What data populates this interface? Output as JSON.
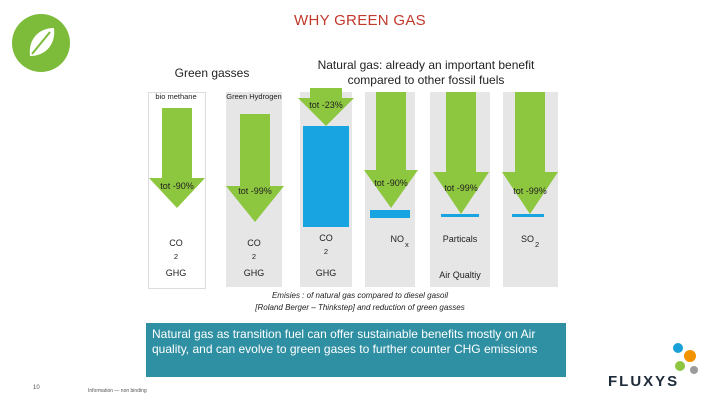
{
  "slide": {
    "title": "WHY GREEN GAS",
    "header_green": "Green gasses",
    "header_natural": "Natural gas: already an important benefit compared to other fossil fuels"
  },
  "columns": {
    "biomethane": "bio methane",
    "green_hydrogen": "Green Hydrogen"
  },
  "arrows": {
    "biomethane": "tot -90%",
    "hydrogen": "tot -99%",
    "natgas_co2": "tot -23%",
    "natgas_2": "tot -90%",
    "natgas_3": "tot -99%",
    "natgas_4": "tot -99%"
  },
  "labels": {
    "co_1": "CO",
    "sub_1": "2",
    "co_2": "CO",
    "sub_2": "2",
    "co_3": "CO",
    "sub_3": "2",
    "nox": "NO",
    "nox_sub": "x",
    "particals": "Particals",
    "so": "SO",
    "so_sub": "2",
    "ghg_1": "GHG",
    "ghg_2": "GHG",
    "ghg_3": "GHG",
    "air_quality": "Air Qualtiy"
  },
  "emissions_note": {
    "line1": "Emisies : of natural gas compared to diesel gasoil",
    "line2": "[Roland Berger – Thinkstep] and reduction of green gasses"
  },
  "callout": "Natural gas as transition fuel can offer sustainable benefits mostly on Air quality, and can evolve to green gases to further counter CHG emissions",
  "footer": {
    "page_number": "10",
    "confidentiality": "Information — non binding",
    "brand": "FLUXYS"
  },
  "colors": {
    "arrow_green": "#8dc63f",
    "bar_blue": "#18a4e0",
    "callout_bg": "#2f8fa3",
    "title_red": "#c0392b"
  }
}
